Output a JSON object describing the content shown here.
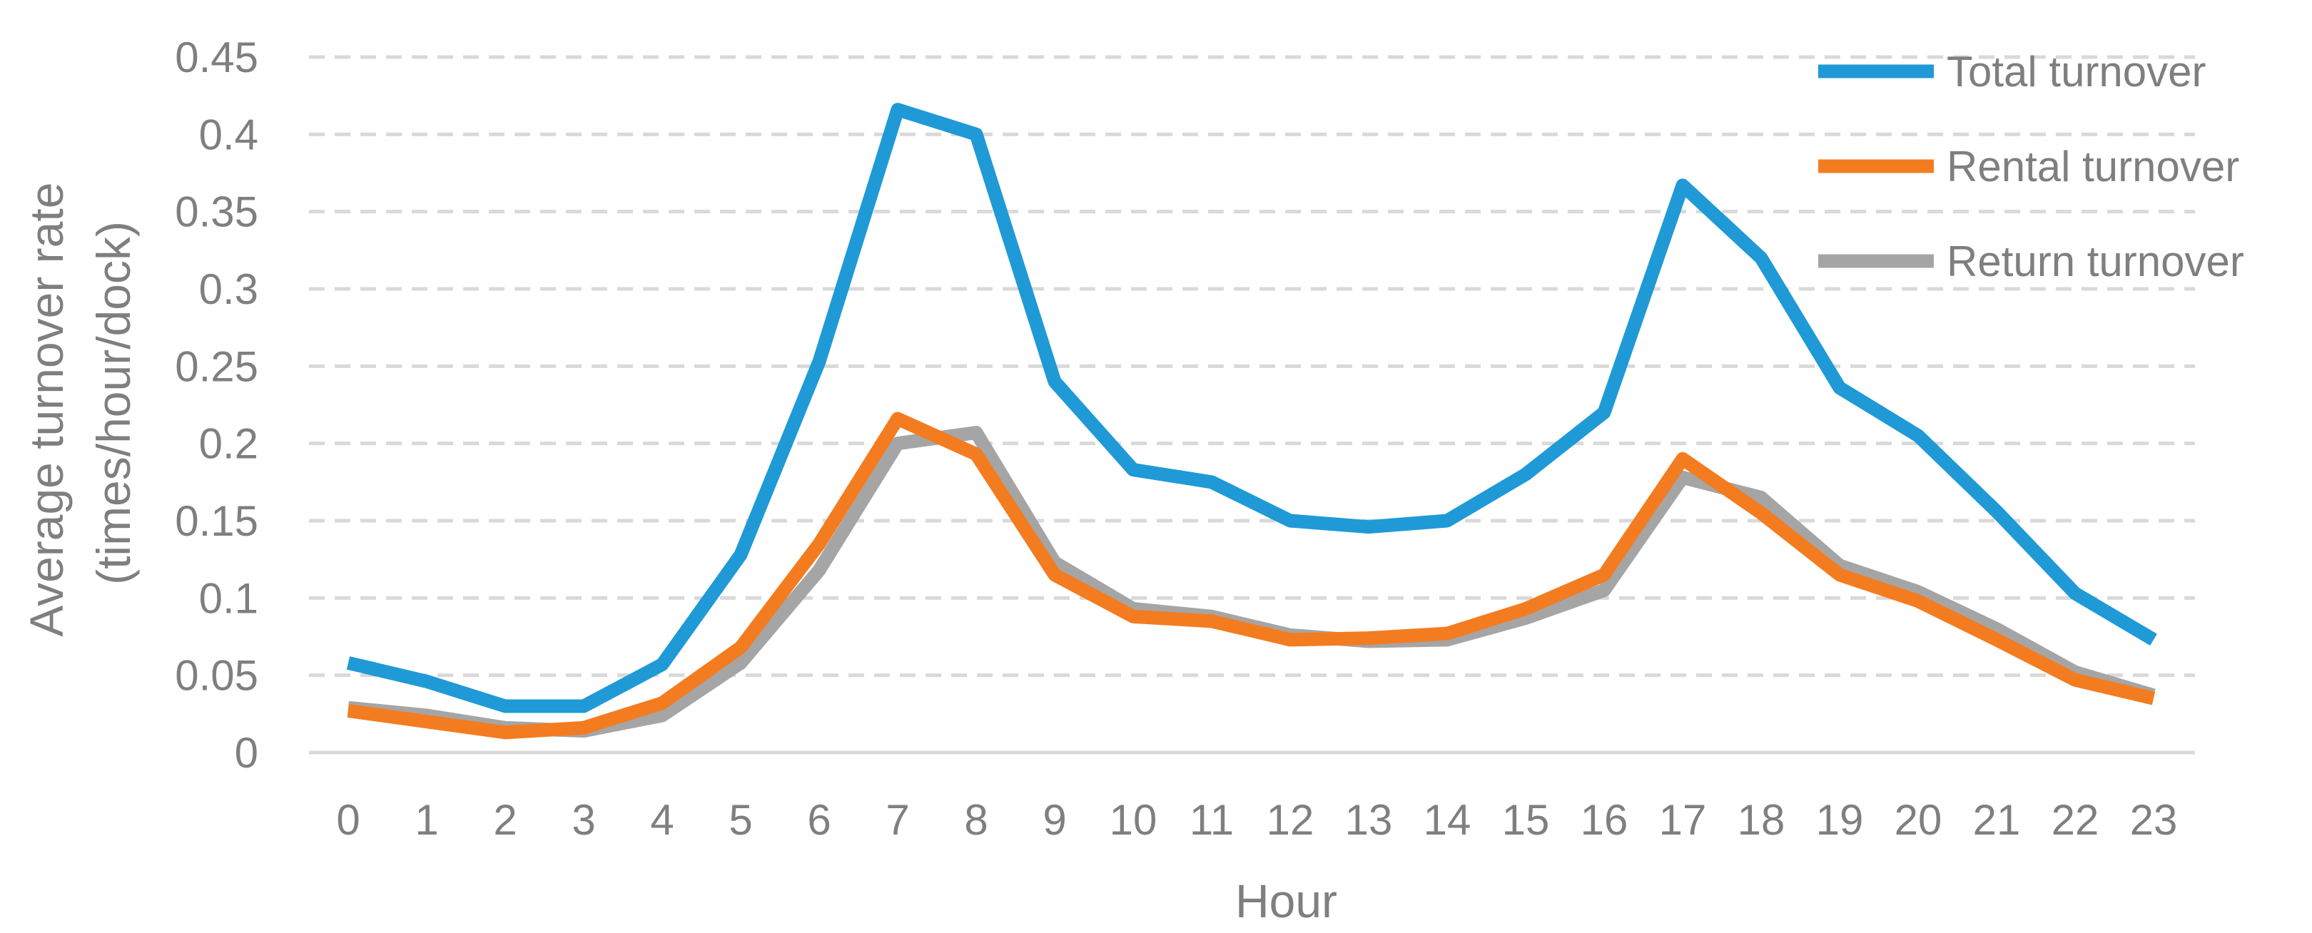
{
  "chart_data": {
    "type": "line",
    "xlabel": "Hour",
    "ylabel_lines": [
      "Average turnover rate",
      "(times/hour/dock)"
    ],
    "ylim": [
      0,
      0.45
    ],
    "y_ticks": [
      "0",
      "0.05",
      "0.1",
      "0.15",
      "0.2",
      "0.25",
      "0.3",
      "0.35",
      "0.4",
      "0.45"
    ],
    "x": [
      "0",
      "1",
      "2",
      "3",
      "4",
      "5",
      "6",
      "7",
      "8",
      "9",
      "10",
      "11",
      "12",
      "13",
      "14",
      "15",
      "16",
      "17",
      "18",
      "19",
      "20",
      "21",
      "22",
      "23"
    ],
    "grid": "horizontal dashed",
    "legend_position": "top-right",
    "series": [
      {
        "name": "Total turnover",
        "color": "#1f9ad6",
        "values": [
          0.058,
          0.046,
          0.03,
          0.03,
          0.057,
          0.128,
          0.253,
          0.416,
          0.4,
          0.24,
          0.183,
          0.175,
          0.15,
          0.146,
          0.15,
          0.18,
          0.22,
          0.367,
          0.32,
          0.236,
          0.205,
          0.156,
          0.103,
          0.073
        ]
      },
      {
        "name": "Rental turnover",
        "color": "#f47c20",
        "values": [
          0.027,
          0.02,
          0.013,
          0.016,
          0.032,
          0.068,
          0.135,
          0.216,
          0.193,
          0.115,
          0.088,
          0.085,
          0.073,
          0.074,
          0.077,
          0.093,
          0.115,
          0.19,
          0.155,
          0.115,
          0.098,
          0.073,
          0.047,
          0.035
        ]
      },
      {
        "name": "Return turnover",
        "color": "#a5a5a5",
        "values": [
          0.029,
          0.024,
          0.016,
          0.014,
          0.024,
          0.058,
          0.118,
          0.2,
          0.207,
          0.123,
          0.093,
          0.088,
          0.076,
          0.072,
          0.073,
          0.087,
          0.105,
          0.178,
          0.165,
          0.121,
          0.104,
          0.08,
          0.052,
          0.037
        ]
      }
    ]
  }
}
